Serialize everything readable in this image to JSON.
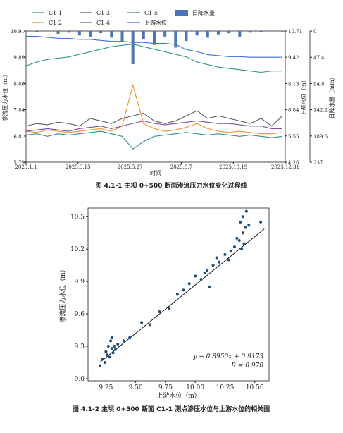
{
  "chart_data": [
    {
      "type": "line",
      "caption": "图 4.1-1  主坝 0+500 断面渗流压力水位变化过程线",
      "xlabel": "时间",
      "ylabel": "渗流压力水位（m）",
      "y2label": "上游水位（m）",
      "y3label": "日降水量（mm）",
      "x": [
        "2025.1.1",
        "2025.1.16",
        "2025.1.31",
        "2025.2.15",
        "2025.3.2",
        "2025.3.17",
        "2025.4.1",
        "2025.4.16",
        "2025.5.1",
        "2025.5.16",
        "2025.5.31",
        "2025.6.15",
        "2025.6.30",
        "2025.7.15",
        "2025.7.30",
        "2025.8.14",
        "2025.8.29",
        "2025.9.13",
        "2025.9.28",
        "2025.10.13",
        "2025.10.28",
        "2025.11.12",
        "2025.11.27",
        "2025.12.12",
        "2025.12.27"
      ],
      "xlim": [
        "2025.1.1",
        "2025.12.31"
      ],
      "xticks": [
        "2025.1.1",
        "2025.3.15",
        "2025.5.27",
        "2025.8.7",
        "2025.10.19",
        "2025.12.31"
      ],
      "ylim": [
        5.79,
        10.91
      ],
      "yticks": [
        5.79,
        6.81,
        7.84,
        8.86,
        9.89,
        10.91
      ],
      "y2lim": [
        4.26,
        10.71
      ],
      "y2ticks": [
        4.26,
        5.55,
        6.84,
        8.13,
        9.42,
        10.71
      ],
      "y3lim": [
        237,
        0
      ],
      "y3ticks": [
        0,
        47.4,
        94.8,
        142.2,
        189.6,
        237
      ],
      "series": [
        {
          "name": "C1-1",
          "color": "#2a9d6e",
          "values": [
            9.55,
            9.7,
            9.8,
            9.85,
            9.9,
            10.0,
            10.1,
            10.2,
            10.3,
            10.35,
            10.4,
            10.3,
            10.2,
            10.1,
            10.0,
            9.9,
            9.7,
            9.6,
            9.5,
            9.45,
            9.4,
            9.35,
            9.3,
            9.35,
            9.35
          ]
        },
        {
          "name": "C1-2",
          "color": "#f28e2b",
          "values": [
            7.0,
            6.95,
            7.05,
            7.0,
            6.95,
            7.0,
            7.05,
            7.1,
            7.0,
            7.2,
            8.8,
            7.3,
            7.1,
            7.0,
            7.05,
            7.15,
            7.3,
            7.1,
            7.0,
            6.95,
            7.0,
            6.95,
            6.9,
            6.9,
            6.95
          ]
        },
        {
          "name": "C1-3",
          "color": "#5a5a5a",
          "values": [
            7.2,
            7.3,
            7.25,
            7.35,
            7.3,
            7.2,
            7.5,
            7.4,
            7.3,
            7.5,
            7.6,
            7.7,
            7.4,
            7.3,
            7.4,
            7.6,
            7.8,
            7.5,
            7.6,
            7.5,
            7.4,
            7.3,
            7.5,
            7.2,
            7.6
          ]
        },
        {
          "name": "C1-4",
          "color": "#7b4fa0",
          "values": [
            7.0,
            7.05,
            7.1,
            7.05,
            7.0,
            7.1,
            7.15,
            7.2,
            7.1,
            7.2,
            7.3,
            7.4,
            7.3,
            7.25,
            7.3,
            7.35,
            7.4,
            7.35,
            7.3,
            7.3,
            7.25,
            7.2,
            7.2,
            7.1,
            7.1
          ]
        },
        {
          "name": "C1-5",
          "color": "#2a8f8f",
          "values": [
            6.85,
            6.9,
            6.8,
            6.9,
            6.85,
            6.9,
            6.95,
            7.0,
            6.9,
            6.8,
            6.3,
            6.6,
            6.8,
            6.85,
            6.9,
            6.95,
            6.9,
            6.85,
            6.9,
            6.85,
            6.8,
            6.85,
            6.8,
            6.75,
            6.8
          ]
        },
        {
          "name": "上游水位",
          "color": "#3a6ee8",
          "axis": "y2",
          "values": [
            10.45,
            10.45,
            10.4,
            10.35,
            10.35,
            10.3,
            10.3,
            10.25,
            10.2,
            10.2,
            10.15,
            10.15,
            10.1,
            10.1,
            10.05,
            9.8,
            9.7,
            9.55,
            9.5,
            9.45,
            9.45,
            9.42,
            9.42,
            9.42,
            9.42
          ]
        },
        {
          "name": "日降水量",
          "color": "#4a74b4",
          "axis": "y3",
          "type": "bar",
          "values": [
            0,
            2,
            0,
            5,
            3,
            8,
            10,
            4,
            12,
            20,
            60,
            15,
            25,
            10,
            30,
            18,
            8,
            12,
            6,
            4,
            10,
            3,
            2,
            0,
            1
          ]
        }
      ]
    },
    {
      "type": "scatter",
      "caption": "图 4.1-2  主坝 0+500 断面 C1-1 测点渗压水位与上游水位的相关图",
      "xlabel": "上游水位（m）",
      "ylabel": "渗流压力水位（m）",
      "color": "#1f4e79",
      "x": [
        9.2,
        9.22,
        9.24,
        9.25,
        9.26,
        9.27,
        9.28,
        9.29,
        9.3,
        9.3,
        9.31,
        9.32,
        9.33,
        9.35,
        9.4,
        9.45,
        9.55,
        9.62,
        9.7,
        9.78,
        9.85,
        9.9,
        9.95,
        10.0,
        10.05,
        10.08,
        10.1,
        10.12,
        10.15,
        10.18,
        10.2,
        10.25,
        10.28,
        10.3,
        10.33,
        10.35,
        10.37,
        10.38,
        10.39,
        10.4,
        10.4,
        10.41,
        10.42,
        10.43,
        10.45,
        10.55
      ],
      "values": [
        9.12,
        9.18,
        9.15,
        9.25,
        9.22,
        9.3,
        9.2,
        9.35,
        9.28,
        9.38,
        9.24,
        9.3,
        9.27,
        9.32,
        9.35,
        9.38,
        9.52,
        9.5,
        9.62,
        9.65,
        9.78,
        9.82,
        9.88,
        9.95,
        9.92,
        9.98,
        10.0,
        9.85,
        10.05,
        10.12,
        10.08,
        10.15,
        10.1,
        10.18,
        10.22,
        10.3,
        10.28,
        10.45,
        10.2,
        10.35,
        10.5,
        10.25,
        10.4,
        10.55,
        10.42,
        10.45
      ],
      "xlim": [
        9.1,
        10.62
      ],
      "xticks": [
        9.25,
        {
          "value": 9.5,
          "label": "9.50"
        },
        9.75,
        {
          "value": 10,
          "label": "10.00"
        },
        10.25,
        {
          "value": 10.5,
          "label": "10.50"
        }
      ],
      "ylim": [
        8.98,
        10.58
      ],
      "yticks": [
        {
          "value": 9,
          "label": "9.0"
        },
        9.3,
        9.6,
        9.9,
        10.2,
        10.5
      ],
      "fit": {
        "slope": 0.895,
        "intercept": 0.9173,
        "x": [
          9.2,
          10.58
        ],
        "equation": "y = 0.8950x + 0.9173",
        "r_label": "R = 0.970"
      }
    }
  ]
}
